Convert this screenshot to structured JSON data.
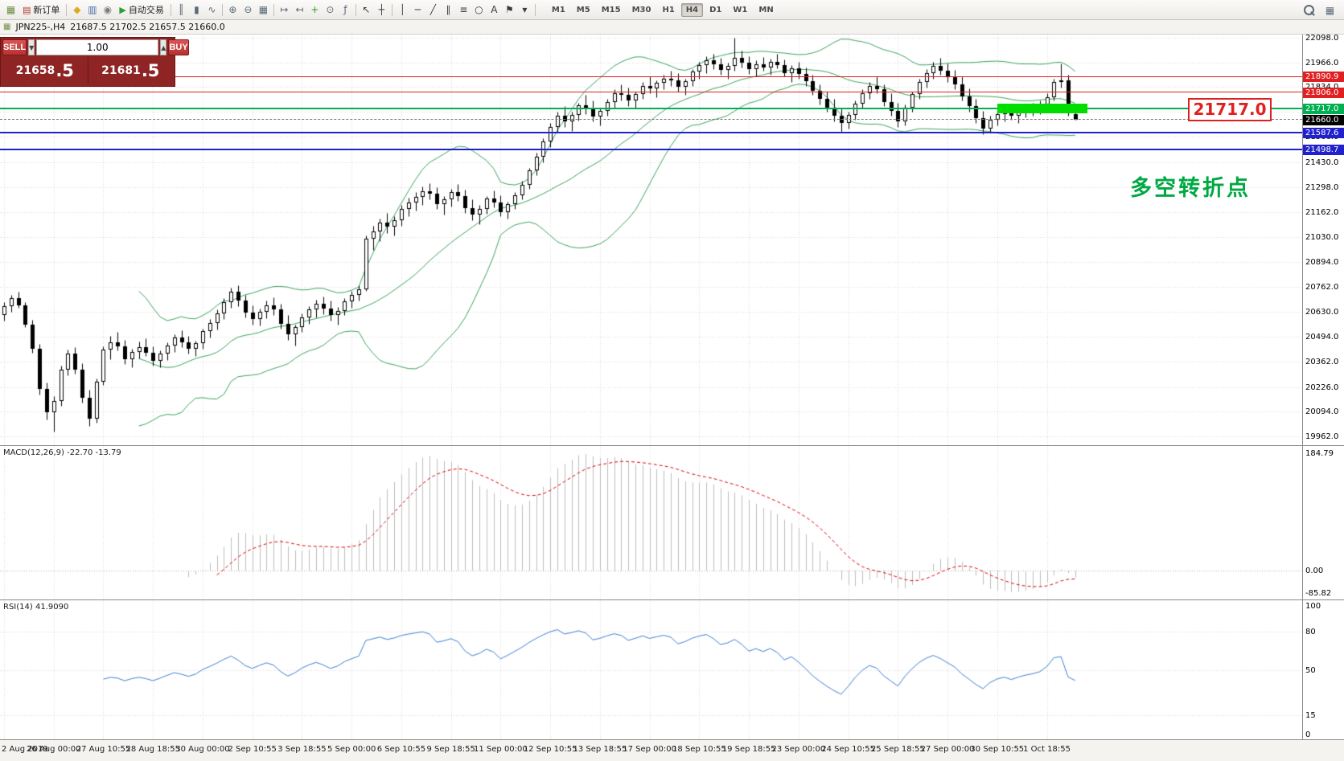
{
  "toolbar": {
    "icons": [
      {
        "name": "app-chart-icon",
        "glyph": "▦",
        "color": "#6e8f45"
      },
      {
        "name": "new-order-button",
        "glyph": "▤",
        "color": "#b03a2e",
        "label": "新订单"
      },
      {
        "sep": true
      },
      {
        "name": "metaeditor-icon",
        "glyph": "◆",
        "color": "#e0a820"
      },
      {
        "name": "market-watch-icon",
        "glyph": "▥",
        "color": "#4a6fae"
      },
      {
        "name": "navigator-icon",
        "glyph": "◉",
        "color": "#7d7d7d"
      },
      {
        "name": "autotrading-button",
        "glyph": "▶",
        "color": "#2e9e2e",
        "label": "自动交易"
      },
      {
        "sep": true
      },
      {
        "name": "bar-chart-icon",
        "glyph": "║",
        "color": "#5a6a78"
      },
      {
        "name": "candlestick-chart-icon",
        "glyph": "▮",
        "color": "#5a6a78"
      },
      {
        "name": "line-chart-icon",
        "glyph": "∿",
        "color": "#5a6a78"
      },
      {
        "sep": true
      },
      {
        "name": "zoom-in-icon",
        "glyph": "⊕",
        "color": "#5a6a78"
      },
      {
        "name": "zoom-out-icon",
        "glyph": "⊖",
        "color": "#5a6a78"
      },
      {
        "name": "tile-windows-icon",
        "glyph": "▦",
        "color": "#5a6a78"
      },
      {
        "sep": true
      },
      {
        "name": "chart-shift-icon",
        "glyph": "↦",
        "color": "#5a6a78"
      },
      {
        "name": "auto-scroll-icon",
        "glyph": "↤",
        "color": "#5a6a78"
      },
      {
        "name": "new-chart-icon",
        "glyph": "+",
        "color": "#2e9e2e"
      },
      {
        "name": "periods-icon",
        "glyph": "⊙",
        "color": "#5a6a78"
      },
      {
        "name": "indicators-icon",
        "glyph": "ƒ",
        "color": "#5a6a78"
      },
      {
        "sep": true
      },
      {
        "name": "cursor-icon",
        "glyph": "↖",
        "color": "#3a3a3a"
      },
      {
        "name": "crosshair-icon",
        "glyph": "┼",
        "color": "#3a3a3a"
      },
      {
        "sep": true
      },
      {
        "name": "vertical-line-icon",
        "glyph": "│",
        "color": "#3a3a3a"
      },
      {
        "name": "horizontal-line-icon",
        "glyph": "─",
        "color": "#3a3a3a"
      },
      {
        "name": "trendline-icon",
        "glyph": "╱",
        "color": "#3a3a3a"
      },
      {
        "name": "channel-icon",
        "glyph": "∥",
        "color": "#3a3a3a"
      },
      {
        "name": "fibonacci-icon",
        "glyph": "≡",
        "color": "#3a3a3a"
      },
      {
        "name": "shapes-icon",
        "glyph": "○",
        "color": "#3a3a3a"
      },
      {
        "name": "text-icon",
        "glyph": "A",
        "color": "#3a3a3a"
      },
      {
        "name": "arrows-icon",
        "glyph": "⚑",
        "color": "#3a3a3a"
      },
      {
        "name": "objects-dropdown-icon",
        "glyph": "▾",
        "color": "#3a3a3a"
      },
      {
        "sep": true
      }
    ],
    "timeframes": [
      "M1",
      "M5",
      "M15",
      "M30",
      "H1",
      "H4",
      "D1",
      "W1",
      "MN"
    ],
    "active_timeframe": "H4",
    "right_icons": [
      {
        "name": "search-icon"
      },
      {
        "name": "layout-icon",
        "glyph": "▦",
        "color": "#5a6a78"
      }
    ]
  },
  "chart_header": {
    "icon_glyph": "▦",
    "symbol": "JPN225-,H4",
    "ohlc": "21687.5 21702.5 21657.5 21660.0"
  },
  "trade_panel": {
    "sell_label": "SELL",
    "buy_label": "BUY",
    "volume": "1.00",
    "vol_down_glyph": "▼",
    "vol_up_glyph": "▲",
    "sell_price_main": "21658",
    "sell_price_sup": ".5",
    "buy_price_main": "21681",
    "buy_price_sup": ".5"
  },
  "annotations": {
    "price_box": "21717.0",
    "pivot_text": "多空转折点"
  },
  "indicators": {
    "macd_label": "MACD(12,26,9) -22.70 -13.79",
    "macd_scale_top": "184.79",
    "macd_scale_zero": "0.00",
    "macd_scale_bottom": "-85.82",
    "rsi_label": "RSI(14) 41.9090",
    "rsi_scale": [
      "100",
      "80",
      "50",
      "15",
      "0"
    ]
  },
  "price_axis": {
    "labels": [
      "22098.0",
      "21966.0",
      "21834.0",
      "21702.0",
      "21566.0",
      "21430.0",
      "21298.0",
      "21162.0",
      "21030.0",
      "20894.0",
      "20762.0",
      "20630.0",
      "20494.0",
      "20362.0",
      "20226.0",
      "20094.0",
      "19962.0"
    ],
    "badges": [
      {
        "price": 21890.9,
        "label": "21890.9",
        "color": "#e02020"
      },
      {
        "price": 21806.0,
        "label": "21806.0",
        "color": "#e02020"
      },
      {
        "price": 21717.0,
        "label": "21717.0",
        "color": "#00b050"
      },
      {
        "price": 21660.0,
        "label": "21660.0",
        "color": "#000000"
      },
      {
        "price": 21587.6,
        "label": "21587.6",
        "color": "#2121cc"
      },
      {
        "price": 21498.7,
        "label": "21498.7",
        "color": "#2121cc"
      }
    ]
  },
  "hlines": [
    {
      "price": 21890.9,
      "color": "#e02020",
      "width": 1,
      "dashed": false
    },
    {
      "price": 21806.0,
      "color": "#e02020",
      "width": 1,
      "dashed": false
    },
    {
      "price": 21717.0,
      "color": "#00b050",
      "width": 2,
      "dashed": false
    },
    {
      "price": 21660.0,
      "color": "#777777",
      "width": 1,
      "dashed": true
    },
    {
      "price": 21587.6,
      "color": "#2121cc",
      "width": 2,
      "dashed": false
    },
    {
      "price": 21498.7,
      "color": "#2121cc",
      "width": 2,
      "dashed": false
    }
  ],
  "highlight_zone": {
    "price": 21717.0,
    "color": "#00dd00"
  },
  "time_axis": [
    "2 Aug 2019",
    "26 Aug 00:00",
    "27 Aug 10:55",
    "28 Aug 18:55",
    "30 Aug 00:00",
    "2 Sep 10:55",
    "3 Sep 18:55",
    "5 Sep 00:00",
    "6 Sep 10:55",
    "9 Sep 18:55",
    "11 Sep 00:00",
    "12 Sep 10:55",
    "13 Sep 18:55",
    "17 Sep 00:00",
    "18 Sep 10:55",
    "19 Sep 18:55",
    "23 Sep 00:00",
    "24 Sep 10:55",
    "25 Sep 18:55",
    "27 Sep 00:00",
    "30 Sep 10:55",
    "1 Oct 18:55"
  ],
  "colors": {
    "bollinger": "#3aa35c",
    "candle_up_fill": "#ffffff",
    "candle_down_fill": "#000000",
    "candle_border": "#000000",
    "grid": "#d9d9d9",
    "macd_histogram": "#bcbcbc",
    "macd_signal": "#dd0000",
    "rsi_line": "#3a7fd5",
    "highlight_green": "#00dd00",
    "annotation_red": "#e02020",
    "annotation_green": "#00a843"
  },
  "chart_data": {
    "type": "candlestick",
    "symbol": "JPN225-",
    "timeframe": "H4",
    "visible_price_range": [
      19962.0,
      22098.0
    ],
    "overlays": [
      "Bollinger Bands"
    ],
    "sub_indicators": [
      "MACD(12,26,9)",
      "RSI(14)"
    ],
    "ohlc": [
      [
        20610,
        20680,
        20580,
        20660
      ],
      [
        20660,
        20720,
        20630,
        20700
      ],
      [
        20700,
        20735,
        20650,
        20665
      ],
      [
        20665,
        20680,
        20545,
        20560
      ],
      [
        20560,
        20585,
        20410,
        20430
      ],
      [
        20430,
        20455,
        20185,
        20215
      ],
      [
        20215,
        20250,
        20050,
        20090
      ],
      [
        20090,
        20175,
        19985,
        20150
      ],
      [
        20150,
        20340,
        20125,
        20320
      ],
      [
        20320,
        20425,
        20290,
        20405
      ],
      [
        20405,
        20440,
        20295,
        20320
      ],
      [
        20320,
        20355,
        20140,
        20170
      ],
      [
        20170,
        20210,
        20015,
        20055
      ],
      [
        20055,
        20270,
        20035,
        20255
      ],
      [
        20255,
        20445,
        20235,
        20425
      ],
      [
        20425,
        20500,
        20375,
        20465
      ],
      [
        20465,
        20520,
        20420,
        20445
      ],
      [
        20445,
        20480,
        20350,
        20375
      ],
      [
        20375,
        20430,
        20330,
        20415
      ],
      [
        20415,
        20470,
        20380,
        20440
      ],
      [
        20440,
        20485,
        20390,
        20410
      ],
      [
        20410,
        20445,
        20340,
        20365
      ],
      [
        20365,
        20420,
        20330,
        20405
      ],
      [
        20405,
        20465,
        20370,
        20450
      ],
      [
        20450,
        20510,
        20415,
        20490
      ],
      [
        20490,
        20530,
        20440,
        20465
      ],
      [
        20465,
        20500,
        20405,
        20430
      ],
      [
        20430,
        20475,
        20390,
        20460
      ],
      [
        20460,
        20540,
        20430,
        20525
      ],
      [
        20525,
        20590,
        20490,
        20570
      ],
      [
        20570,
        20640,
        20535,
        20620
      ],
      [
        20620,
        20700,
        20590,
        20680
      ],
      [
        20680,
        20760,
        20650,
        20735
      ],
      [
        20735,
        20770,
        20660,
        20690
      ],
      [
        20690,
        20720,
        20600,
        20625
      ],
      [
        20625,
        20665,
        20560,
        20590
      ],
      [
        20590,
        20645,
        20555,
        20630
      ],
      [
        20630,
        20690,
        20595,
        20665
      ],
      [
        20665,
        20705,
        20610,
        20640
      ],
      [
        20640,
        20670,
        20540,
        20565
      ],
      [
        20565,
        20610,
        20480,
        20510
      ],
      [
        20510,
        20560,
        20450,
        20545
      ],
      [
        20545,
        20620,
        20520,
        20600
      ],
      [
        20600,
        20660,
        20565,
        20640
      ],
      [
        20640,
        20695,
        20600,
        20670
      ],
      [
        20670,
        20710,
        20615,
        20645
      ],
      [
        20645,
        20690,
        20580,
        20610
      ],
      [
        20610,
        20655,
        20560,
        20635
      ],
      [
        20635,
        20700,
        20610,
        20685
      ],
      [
        20685,
        20740,
        20650,
        20720
      ],
      [
        20720,
        20770,
        20690,
        20750
      ],
      [
        20750,
        21040,
        20740,
        21020
      ],
      [
        21020,
        21090,
        20960,
        21060
      ],
      [
        21060,
        21130,
        21010,
        21105
      ],
      [
        21105,
        21160,
        21050,
        21085
      ],
      [
        21085,
        21140,
        21040,
        21120
      ],
      [
        21120,
        21200,
        21090,
        21180
      ],
      [
        21180,
        21240,
        21140,
        21215
      ],
      [
        21215,
        21270,
        21170,
        21245
      ],
      [
        21245,
        21300,
        21200,
        21275
      ],
      [
        21275,
        21320,
        21230,
        21260
      ],
      [
        21260,
        21295,
        21180,
        21205
      ],
      [
        21205,
        21250,
        21150,
        21230
      ],
      [
        21230,
        21290,
        21195,
        21270
      ],
      [
        21270,
        21315,
        21225,
        21250
      ],
      [
        21250,
        21285,
        21160,
        21185
      ],
      [
        21185,
        21230,
        21120,
        21150
      ],
      [
        21150,
        21200,
        21100,
        21180
      ],
      [
        21180,
        21250,
        21155,
        21235
      ],
      [
        21235,
        21280,
        21190,
        21215
      ],
      [
        21215,
        21255,
        21140,
        21165
      ],
      [
        21165,
        21220,
        21130,
        21205
      ],
      [
        21205,
        21270,
        21180,
        21255
      ],
      [
        21255,
        21330,
        21230,
        21310
      ],
      [
        21310,
        21400,
        21290,
        21385
      ],
      [
        21385,
        21480,
        21360,
        21460
      ],
      [
        21460,
        21560,
        21430,
        21540
      ],
      [
        21540,
        21640,
        21510,
        21620
      ],
      [
        21620,
        21700,
        21590,
        21680
      ],
      [
        21680,
        21730,
        21620,
        21650
      ],
      [
        21650,
        21700,
        21600,
        21685
      ],
      [
        21685,
        21750,
        21655,
        21735
      ],
      [
        21735,
        21790,
        21690,
        21720
      ],
      [
        21720,
        21760,
        21650,
        21675
      ],
      [
        21675,
        21720,
        21630,
        21705
      ],
      [
        21705,
        21770,
        21680,
        21755
      ],
      [
        21755,
        21820,
        21720,
        21800
      ],
      [
        21800,
        21850,
        21760,
        21790
      ],
      [
        21790,
        21830,
        21730,
        21760
      ],
      [
        21760,
        21810,
        21720,
        21795
      ],
      [
        21795,
        21860,
        21770,
        21840
      ],
      [
        21840,
        21890,
        21800,
        21825
      ],
      [
        21825,
        21870,
        21780,
        21855
      ],
      [
        21855,
        21900,
        21820,
        21880
      ],
      [
        21880,
        21920,
        21840,
        21870
      ],
      [
        21870,
        21910,
        21810,
        21835
      ],
      [
        21835,
        21880,
        21790,
        21865
      ],
      [
        21865,
        21930,
        21840,
        21915
      ],
      [
        21915,
        21970,
        21880,
        21950
      ],
      [
        21950,
        22000,
        21910,
        21975
      ],
      [
        21975,
        22010,
        21930,
        21955
      ],
      [
        21955,
        21990,
        21900,
        21925
      ],
      [
        21925,
        21965,
        21880,
        21945
      ],
      [
        21945,
        22098,
        21920,
        21990
      ],
      [
        21990,
        22030,
        21940,
        21965
      ],
      [
        21965,
        22000,
        21905,
        21930
      ],
      [
        21930,
        21975,
        21890,
        21955
      ],
      [
        21955,
        21995,
        21920,
        21940
      ],
      [
        21940,
        21985,
        21900,
        21970
      ],
      [
        21970,
        22010,
        21935,
        21950
      ],
      [
        21950,
        21980,
        21890,
        21910
      ],
      [
        21910,
        21950,
        21860,
        21935
      ],
      [
        21935,
        21970,
        21880,
        21905
      ],
      [
        21905,
        21940,
        21840,
        21865
      ],
      [
        21865,
        21900,
        21790,
        21815
      ],
      [
        21815,
        21850,
        21740,
        21770
      ],
      [
        21770,
        21810,
        21700,
        21725
      ],
      [
        21725,
        21770,
        21650,
        21680
      ],
      [
        21680,
        21720,
        21595,
        21640
      ],
      [
        21640,
        21700,
        21610,
        21685
      ],
      [
        21685,
        21760,
        21660,
        21745
      ],
      [
        21745,
        21820,
        21720,
        21800
      ],
      [
        21800,
        21860,
        21770,
        21840
      ],
      [
        21840,
        21890,
        21800,
        21820
      ],
      [
        21820,
        21850,
        21730,
        21755
      ],
      [
        21755,
        21800,
        21680,
        21705
      ],
      [
        21705,
        21750,
        21620,
        21650
      ],
      [
        21650,
        21740,
        21630,
        21725
      ],
      [
        21725,
        21810,
        21700,
        21795
      ],
      [
        21795,
        21880,
        21770,
        21860
      ],
      [
        21860,
        21930,
        21830,
        21910
      ],
      [
        21910,
        21970,
        21880,
        21945
      ],
      [
        21945,
        21990,
        21900,
        21920
      ],
      [
        21920,
        21960,
        21860,
        21885
      ],
      [
        21885,
        21925,
        21820,
        21850
      ],
      [
        21850,
        21890,
        21760,
        21785
      ],
      [
        21785,
        21825,
        21700,
        21730
      ],
      [
        21730,
        21770,
        21640,
        21665
      ],
      [
        21665,
        21705,
        21580,
        21610
      ],
      [
        21610,
        21680,
        21590,
        21660
      ],
      [
        21660,
        21710,
        21630,
        21690
      ],
      [
        21690,
        21730,
        21650,
        21705
      ],
      [
        21705,
        21740,
        21660,
        21680
      ],
      [
        21680,
        21720,
        21640,
        21700
      ],
      [
        21700,
        21745,
        21670,
        21715
      ],
      [
        21715,
        21750,
        21680,
        21725
      ],
      [
        21725,
        21760,
        21690,
        21740
      ],
      [
        21740,
        21800,
        21710,
        21780
      ],
      [
        21780,
        21880,
        21760,
        21860
      ],
      [
        21860,
        21960,
        21830,
        21870
      ],
      [
        21870,
        21900,
        21680,
        21700
      ],
      [
        21687.5,
        21702.5,
        21657.5,
        21660.0
      ]
    ]
  }
}
